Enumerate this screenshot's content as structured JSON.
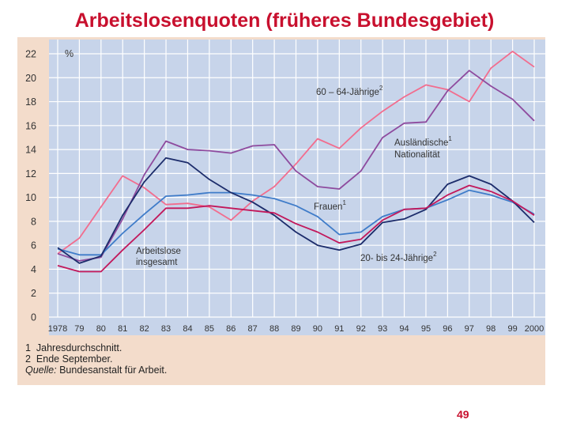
{
  "slide": {
    "title": "Arbeitslosenquoten (früheres Bundesgebiet)",
    "page_number": "49"
  },
  "footnotes": [
    {
      "mark": "1",
      "text": "Jahresdurchschnitt."
    },
    {
      "mark": "2",
      "text": "Ende September."
    }
  ],
  "source": {
    "label": "Quelle:",
    "text": "Bundesanstalt für Arbeit."
  },
  "colors": {
    "plot_background": "#c7d4ea",
    "frame_background": "#f3dccb",
    "gridline": "#ffffff",
    "series_60_64": "#f26d8e",
    "series_auslaendische": "#8e4b9e",
    "series_frauen": "#3f7cc9",
    "series_insgesamt": "#1c2c6b",
    "series_20_24": "#c2185b"
  },
  "chart_data": {
    "type": "line",
    "ylabel": "%",
    "ylim": [
      0,
      22
    ],
    "yticks": [
      0,
      2,
      4,
      6,
      8,
      10,
      12,
      14,
      16,
      18,
      20,
      22
    ],
    "grid": true,
    "x": [
      1978,
      1979,
      1980,
      1981,
      1982,
      1983,
      1984,
      1985,
      1986,
      1987,
      1988,
      1989,
      1990,
      1991,
      1992,
      1993,
      1994,
      1995,
      1996,
      1997,
      1998,
      1999,
      2000
    ],
    "xtick_labels": [
      "1978",
      "79",
      "80",
      "81",
      "82",
      "83",
      "84",
      "85",
      "86",
      "87",
      "88",
      "89",
      "90",
      "91",
      "92",
      "93",
      "94",
      "95",
      "96",
      "97",
      "98",
      "99",
      "2000"
    ],
    "series": [
      {
        "key": "s60_64",
        "name": "60 – 64-Jährige",
        "sup": "2",
        "color": "#f26d8e",
        "values": [
          5.3,
          6.6,
          9.2,
          11.8,
          10.8,
          9.4,
          9.5,
          9.2,
          8.1,
          9.7,
          10.9,
          12.8,
          14.9,
          14.1,
          15.8,
          17.2,
          18.4,
          19.4,
          19.0,
          18.0,
          20.8,
          22.2,
          20.9
        ]
      },
      {
        "key": "auslaendische",
        "name": "Ausländische Nationalität",
        "name_lines": [
          "Ausländische",
          "Nationalität"
        ],
        "sup": "1",
        "color": "#8e4b9e",
        "values": [
          5.3,
          4.7,
          5.0,
          8.2,
          11.9,
          14.7,
          14.0,
          13.9,
          13.7,
          14.3,
          14.4,
          12.2,
          10.9,
          10.7,
          12.2,
          15.0,
          16.2,
          16.3,
          18.9,
          20.6,
          19.3,
          18.2,
          16.4
        ]
      },
      {
        "key": "frauen",
        "name": "Frauen",
        "sup": "1",
        "color": "#3f7cc9",
        "values": [
          5.7,
          5.2,
          5.2,
          7.0,
          8.6,
          10.1,
          10.2,
          10.4,
          10.4,
          10.2,
          9.9,
          9.3,
          8.4,
          6.9,
          7.1,
          8.4,
          9.0,
          9.1,
          9.8,
          10.6,
          10.2,
          9.6,
          8.6
        ]
      },
      {
        "key": "insgesamt",
        "name": "Arbeitslose insgesamt",
        "name_lines": [
          "Arbeitslose",
          "insgesamt"
        ],
        "sup": "",
        "color": "#1c2c6b",
        "values": [
          5.8,
          4.5,
          5.1,
          8.5,
          11.3,
          13.3,
          12.9,
          11.5,
          10.4,
          9.6,
          8.5,
          7.1,
          6.0,
          5.6,
          6.1,
          7.9,
          8.2,
          9.0,
          11.1,
          11.8,
          11.1,
          9.7,
          7.9
        ]
      },
      {
        "key": "s20_24",
        "name": "20- bis 24-Jährige",
        "sup": "2",
        "color": "#c2185b",
        "values": [
          4.3,
          3.8,
          3.8,
          5.6,
          7.3,
          9.1,
          9.1,
          9.3,
          9.1,
          8.9,
          8.7,
          7.8,
          7.1,
          6.2,
          6.5,
          8.1,
          9.0,
          9.1,
          10.2,
          11.0,
          10.5,
          9.7,
          8.5
        ]
      }
    ]
  }
}
